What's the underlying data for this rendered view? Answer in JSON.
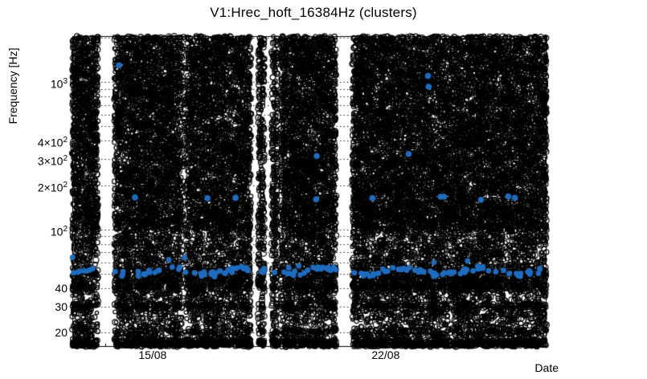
{
  "chart_data": {
    "type": "scatter",
    "title": "V1:Hrec_hoft_16384Hz (clusters)",
    "xlabel": "Date",
    "ylabel": "Frequency [Hz]",
    "y_scale": "log",
    "ylim": [
      16,
      2048
    ],
    "x_span_days": 14.24,
    "x_ticks": [
      {
        "label": "15/08",
        "day": 2.41
      },
      {
        "label": "22/08",
        "day": 9.41
      }
    ],
    "y_ticks": [
      {
        "base": "10",
        "exp": "3",
        "value": 1000
      },
      {
        "base": "4×10",
        "exp": "2",
        "value": 400
      },
      {
        "base": "3×10",
        "exp": "2",
        "value": 300
      },
      {
        "base": "2×10",
        "exp": "2",
        "value": 200
      },
      {
        "base": "10",
        "exp": "2",
        "value": 100
      },
      {
        "base": "40",
        "exp": "",
        "value": 40
      },
      {
        "base": "30",
        "exp": "",
        "value": 30
      },
      {
        "base": "20",
        "exp": "",
        "value": 20
      }
    ],
    "grid_minor": [
      20,
      30,
      40,
      50,
      60,
      70,
      80,
      90,
      100,
      200,
      300,
      400,
      500,
      600,
      700,
      800,
      900,
      1000,
      2000
    ],
    "grid_style": "dotted",
    "data_gaps_days": [
      [
        0.77,
        1.26
      ],
      [
        5.36,
        5.58
      ],
      [
        5.77,
        5.99
      ],
      [
        6.16,
        6.26
      ],
      [
        7.92,
        8.41
      ]
    ],
    "sparse_columns_days": [
      {
        "range": [
          3.26,
          3.45
        ],
        "keep": 0.35
      }
    ],
    "background_points": {
      "marker": "open-circle",
      "color": "#000000",
      "n": 30000,
      "seed": 42,
      "bands": [
        {
          "f": [
            150,
            2048
          ],
          "w": 0.56
        },
        {
          "f": [
            100,
            150
          ],
          "w": 0.1
        },
        {
          "f": [
            55,
            100
          ],
          "w": 0.09
        },
        {
          "f": [
            40,
            55
          ],
          "w": 0.08
        },
        {
          "f": [
            25,
            40
          ],
          "w": 0.06
        },
        {
          "f": [
            16,
            25
          ],
          "w": 0.05
        }
      ],
      "lines": [
        {
          "f": 40,
          "w": 0.01
        },
        {
          "f": 30,
          "w": 0.015
        },
        {
          "f": 20,
          "w": 0.01
        },
        {
          "f": 17,
          "w": 0.045
        }
      ]
    },
    "cluster_points": {
      "marker": "filled-circle",
      "color": "#1f6cbf",
      "band": {
        "f_center": 52,
        "f_spread": 4,
        "n": 170,
        "wave_amp": 2.5,
        "wave_freq": 2.7,
        "high_tail_chance": 0.05
      },
      "outliers": [
        [
          1.4,
          1300
        ],
        [
          10.68,
          1100
        ],
        [
          10.7,
          930
        ],
        [
          10.1,
          325
        ],
        [
          7.34,
          315
        ],
        [
          1.88,
          165
        ],
        [
          4.06,
          163
        ],
        [
          4.9,
          164
        ],
        [
          7.32,
          160
        ],
        [
          9.01,
          163
        ],
        [
          11.06,
          167
        ],
        [
          11.16,
          167
        ],
        [
          12.27,
          159
        ],
        [
          13.09,
          168
        ],
        [
          13.29,
          164
        ]
      ]
    }
  }
}
